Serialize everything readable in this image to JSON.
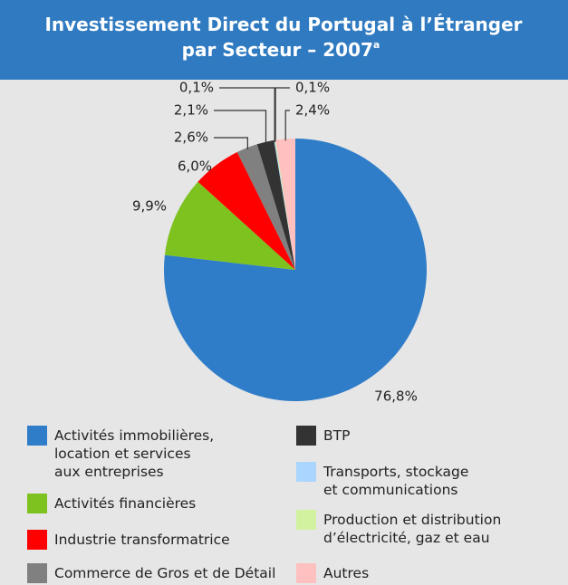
{
  "chart_data": {
    "type": "pie",
    "title": [
      "Investissement Direct du Portugal à l’Étranger",
      "par Secteur – 2007"
    ],
    "title_superscript": "a",
    "categories": [
      "Activités immobilières,\nlocation et services\naux entreprises",
      "Activités financières",
      "Industrie transformatrice",
      "Commerce de Gros et de Détail",
      "BTP",
      "Transports, stockage\net communications",
      "Production et distribution\nd’électricité, gaz et eau",
      "Autres"
    ],
    "values": [
      76.8,
      9.9,
      6.0,
      2.6,
      2.1,
      0.1,
      0.1,
      2.4
    ],
    "value_labels": [
      "76,8%",
      "9,9%",
      "6,0%",
      "2,6%",
      "2,1%",
      "0,1%",
      "0,1%",
      "2,4%"
    ],
    "colors": [
      "#2f7dc8",
      "#7dc21e",
      "#ff0000",
      "#808080",
      "#333333",
      "#a9d5ff",
      "#d3f2a0",
      "#ffc0c0"
    ]
  }
}
